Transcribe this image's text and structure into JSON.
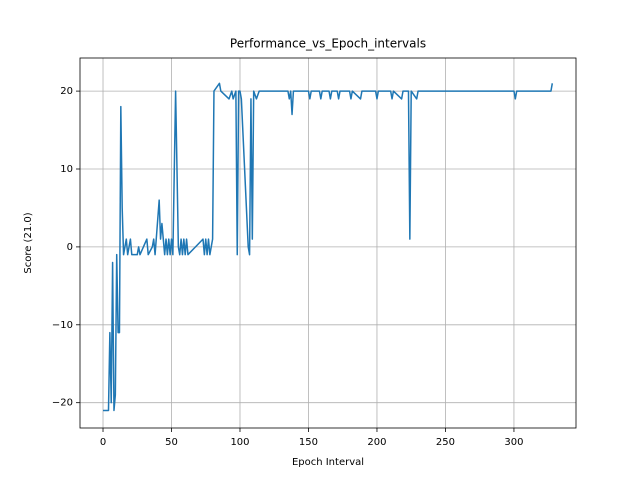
{
  "chart_data": {
    "type": "line",
    "title": "Performance_vs_Epoch_intervals",
    "x_label": "Epoch Interval",
    "y_label": "Score (21.0)",
    "x": [
      0,
      4,
      5,
      6,
      7,
      8,
      9,
      10,
      11,
      12,
      13,
      14,
      15,
      16,
      17,
      18,
      20,
      21,
      25,
      26,
      27,
      32,
      33,
      36,
      37,
      38,
      41,
      42,
      43,
      44,
      45,
      46,
      47,
      48,
      49,
      50,
      51,
      53,
      54,
      55,
      56,
      57,
      58,
      59,
      60,
      61,
      62,
      73,
      74,
      75,
      76,
      77,
      78,
      80,
      81,
      85,
      86,
      92,
      94,
      95,
      97,
      98,
      99,
      100,
      101,
      106,
      107,
      108,
      109,
      110,
      112,
      114,
      135,
      136,
      137,
      138,
      139,
      150,
      151,
      152,
      158,
      159,
      160,
      165,
      166,
      167,
      171,
      172,
      173,
      180,
      181,
      182,
      188,
      189,
      199,
      200,
      201,
      210,
      211,
      212,
      218,
      219,
      223,
      224,
      225,
      229,
      230,
      300,
      301,
      302,
      327,
      328
    ],
    "values": [
      -21,
      -21,
      -11,
      -20,
      -2,
      -21,
      -19,
      -1,
      -11,
      -11,
      18,
      5,
      -1,
      0,
      1,
      -1,
      1,
      -1,
      -1,
      0,
      -1,
      1,
      -1,
      0,
      1,
      -1,
      6,
      1,
      3,
      1,
      -1,
      1,
      -1,
      1,
      -1,
      1,
      -1,
      20,
      10,
      0,
      -1,
      1,
      -1,
      1,
      -1,
      1,
      -1,
      1,
      -1,
      1,
      -1,
      1,
      -1,
      1,
      20,
      21,
      20,
      19,
      20,
      19,
      20,
      -1,
      20,
      20,
      19,
      0,
      -1,
      19,
      1,
      20,
      19,
      20,
      20,
      19,
      20,
      17,
      20,
      20,
      19,
      20,
      20,
      19,
      20,
      20,
      19,
      20,
      20,
      19,
      20,
      20,
      19,
      20,
      19,
      20,
      20,
      19,
      20,
      20,
      19,
      20,
      19,
      20,
      20,
      1,
      20,
      19,
      20,
      20,
      19,
      20,
      20,
      21
    ],
    "color": "#1f77b4",
    "xlim": [
      -16.8,
      345.3
    ],
    "ylim": [
      -23.25,
      24.25
    ],
    "xticks": [
      0,
      50,
      100,
      150,
      200,
      250,
      300
    ],
    "yticks": [
      {
        "value": -20,
        "label": "−20"
      },
      {
        "value": -10,
        "label": "−10"
      },
      0,
      10,
      20
    ],
    "grid": true
  }
}
